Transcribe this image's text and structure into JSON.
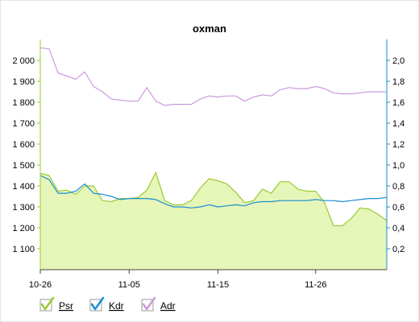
{
  "chart_data": {
    "type": "area",
    "title": "oxman",
    "x_ticks": [
      "10-26",
      "11-05",
      "11-15",
      "11-26"
    ],
    "x": [
      "10-26",
      "10-27",
      "10-28",
      "10-29",
      "10-30",
      "10-31",
      "11-01",
      "11-02",
      "11-03",
      "11-04",
      "11-05",
      "11-06",
      "11-07",
      "11-08",
      "11-09",
      "11-10",
      "11-11",
      "11-12",
      "11-13",
      "11-14",
      "11-15",
      "11-16",
      "11-17",
      "11-18",
      "11-19",
      "11-20",
      "11-21",
      "11-22",
      "11-23",
      "11-24",
      "11-25",
      "11-26",
      "11-27",
      "11-28",
      "11-29",
      "11-30",
      "12-01",
      "12-02",
      "12-03",
      "12-04"
    ],
    "y_left": {
      "min": 1000,
      "max": 2100,
      "ticks": [
        1100,
        1200,
        1300,
        1400,
        1500,
        1600,
        1700,
        1800,
        1900,
        2000
      ],
      "tick_labels": [
        "1 100",
        "1 200",
        "1 300",
        "1 400",
        "1 500",
        "1 600",
        "1 700",
        "1 800",
        "1 900",
        "2 000"
      ]
    },
    "y_right": {
      "min": 0,
      "max": 2.2,
      "ticks": [
        0.2,
        0.4,
        0.6,
        0.8,
        1.0,
        1.2,
        1.4,
        1.6,
        1.8,
        2.0
      ],
      "tick_labels": [
        "0,2",
        "0,4",
        "0,6",
        "0,8",
        "1,0",
        "1,2",
        "1,4",
        "1,6",
        "1,8",
        "2,0"
      ]
    },
    "grid": false,
    "legend_position": "bottom-left",
    "series": [
      {
        "name": "Psr",
        "axis": "left",
        "style": "area",
        "color": "#99cc33",
        "fill": "#e6f5b8",
        "values": [
          1460,
          1450,
          1375,
          1380,
          1360,
          1400,
          1400,
          1330,
          1325,
          1340,
          1340,
          1345,
          1380,
          1465,
          1330,
          1310,
          1310,
          1330,
          1390,
          1435,
          1425,
          1410,
          1370,
          1320,
          1330,
          1385,
          1365,
          1420,
          1420,
          1385,
          1375,
          1375,
          1320,
          1210,
          1210,
          1245,
          1295,
          1290,
          1265,
          1235
        ]
      },
      {
        "name": "Kdr",
        "axis": "right",
        "style": "line",
        "color": "#1a8fd1",
        "values": [
          0.9,
          0.86,
          0.73,
          0.73,
          0.75,
          0.82,
          0.73,
          0.72,
          0.7,
          0.67,
          0.68,
          0.68,
          0.68,
          0.67,
          0.63,
          0.6,
          0.6,
          0.59,
          0.6,
          0.62,
          0.6,
          0.61,
          0.62,
          0.61,
          0.64,
          0.65,
          0.65,
          0.66,
          0.66,
          0.66,
          0.66,
          0.67,
          0.66,
          0.66,
          0.65,
          0.66,
          0.67,
          0.68,
          0.68,
          0.69
        ]
      },
      {
        "name": "Adr",
        "axis": "right",
        "style": "line",
        "color": "#cc99dd",
        "values": [
          2.12,
          2.11,
          1.88,
          1.85,
          1.82,
          1.89,
          1.75,
          1.7,
          1.63,
          1.62,
          1.61,
          1.61,
          1.74,
          1.61,
          1.57,
          1.58,
          1.58,
          1.58,
          1.63,
          1.66,
          1.65,
          1.66,
          1.66,
          1.61,
          1.65,
          1.67,
          1.66,
          1.72,
          1.74,
          1.73,
          1.73,
          1.75,
          1.73,
          1.69,
          1.68,
          1.68,
          1.69,
          1.7,
          1.7,
          1.7
        ]
      }
    ]
  }
}
